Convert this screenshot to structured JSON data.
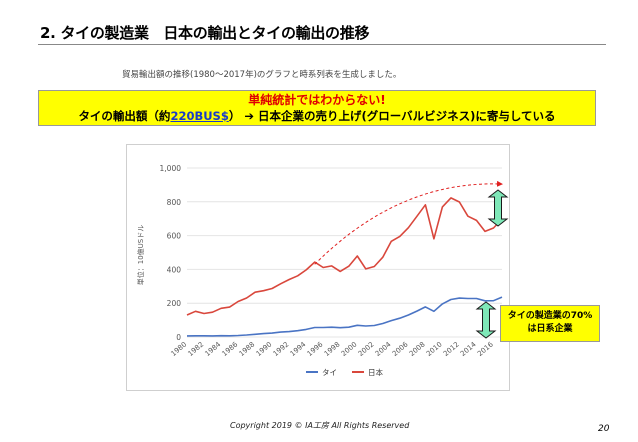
{
  "title": "2. タイの製造業　日本の輸出とタイの輸出の推移",
  "caption": "貿易輸出額の推移(1980〜2017年)のグラフと時系列表を生成しました。",
  "callout": {
    "line1": "単純統計ではわからない!",
    "line2_pre": "タイの輸出額（約",
    "line2_highlight": "220BUS$",
    "line2_post": "） ➔ 日本企業の売り上げ(グローバルビジネス)に寄与している"
  },
  "note": {
    "line1": "タイの製造業の70%",
    "line2": "は日系企業"
  },
  "footer": "Copyright 2019 © IA工房 All Rights Reserved",
  "page_number": "20",
  "colors": {
    "thai": "#4a74c4",
    "japan": "#d9473c",
    "callout_bg": "#ffff00",
    "arrow_fill": "#7ee8b8"
  },
  "chart_data": {
    "type": "line",
    "ylabel": "単位：10億USドル",
    "ylim": [
      0,
      1000
    ],
    "yticks": [
      "0",
      "200",
      "400",
      "600",
      "800",
      "1,000"
    ],
    "xtick_labels": [
      "1980",
      "1982",
      "1984",
      "1986",
      "1988",
      "1990",
      "1992",
      "1994",
      "1996",
      "1998",
      "2000",
      "2002",
      "2004",
      "2006",
      "2008",
      "2010",
      "2012",
      "2014",
      "2016"
    ],
    "grid": true,
    "legend_placement": "bottom-center",
    "x": [
      1980,
      1981,
      1982,
      1983,
      1984,
      1985,
      1986,
      1987,
      1988,
      1989,
      1990,
      1991,
      1992,
      1993,
      1994,
      1995,
      1996,
      1997,
      1998,
      1999,
      2000,
      2001,
      2002,
      2003,
      2004,
      2005,
      2006,
      2007,
      2008,
      2009,
      2010,
      2011,
      2012,
      2013,
      2014,
      2015,
      2016,
      2017
    ],
    "series": [
      {
        "name": "タイ",
        "color": "#4a74c4",
        "values": [
          6.5,
          7,
          7,
          6.4,
          7.4,
          7.1,
          8.8,
          11.7,
          16,
          20,
          23,
          29,
          32,
          37,
          45,
          56,
          56,
          58,
          55,
          58,
          69,
          65,
          68,
          80,
          97,
          111,
          130,
          153,
          178,
          152,
          196,
          222,
          230,
          228,
          228,
          214,
          215,
          236
        ]
      },
      {
        "name": "日本",
        "color": "#d9473c",
        "values": [
          130,
          152,
          139,
          147,
          170,
          177,
          210,
          231,
          265,
          274,
          287,
          315,
          340,
          362,
          397,
          443,
          411,
          421,
          388,
          419,
          479,
          403,
          417,
          472,
          566,
          595,
          647,
          714,
          782,
          581,
          770,
          823,
          799,
          715,
          690,
          625,
          645,
          698
        ]
      }
    ],
    "annotations": [
      {
        "type": "dashed-arrow",
        "from": [
          1995,
          430
        ],
        "to": [
          2017,
          905
        ]
      }
    ]
  }
}
